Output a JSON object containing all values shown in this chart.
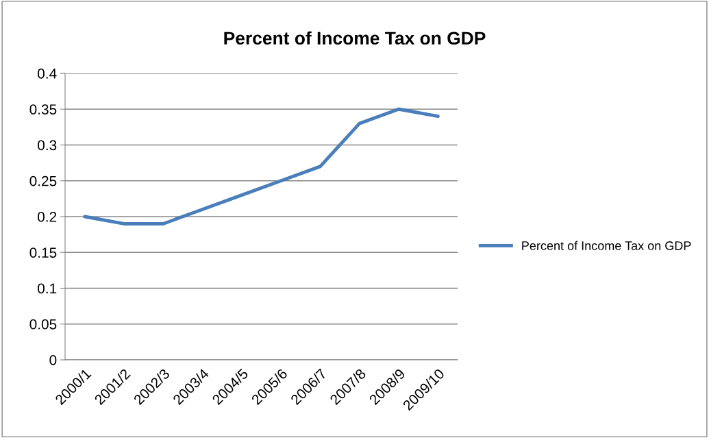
{
  "chart_data": {
    "type": "line",
    "title": "Percent of Income Tax on GDP",
    "categories": [
      "2000/1",
      "2001/2",
      "2002/3",
      "2003/4",
      "2004/5",
      "2005/6",
      "2006/7",
      "2007/8",
      "2008/9",
      "2009/10"
    ],
    "series": [
      {
        "name": "Percent of Income Tax on GDP",
        "color": "#4a7ebb",
        "values": [
          0.2,
          0.19,
          0.19,
          0.21,
          0.23,
          0.25,
          0.27,
          0.33,
          0.35,
          0.34
        ]
      }
    ],
    "ylim": [
      0,
      0.4
    ],
    "yticks": [
      0,
      0.05,
      0.1,
      0.15,
      0.2,
      0.25,
      0.3,
      0.35,
      0.4
    ],
    "grid": "y",
    "legend": "right",
    "marker": "none",
    "line_style": "solid"
  }
}
